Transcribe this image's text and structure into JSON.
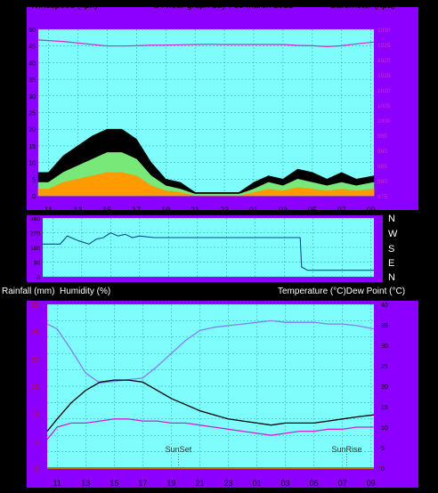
{
  "colors": {
    "background": "#000000",
    "panel": "#8c00ff",
    "plot": "#7ffdfd",
    "grid": "#2aa8a8",
    "baro": "#d02ad0",
    "gust": "#000000",
    "wind_mid": "#78e878",
    "wind_avg": "#ff9a00",
    "wind_dir": "#0b4f8a",
    "outdoor_temp": "#000000",
    "humidity": "#8080f0",
    "dew_point": "#d020d0",
    "rain_axis": "#cc0000",
    "rain_line": "#c07000"
  },
  "top_panel": {
    "left_title": "Windspeed (kph)",
    "center_title": "24 hour graph day : 30 March 2021",
    "right_title": "Barometer (hpa)"
  },
  "dir_panel": {
    "compass_labels": [
      "N",
      "W",
      "S",
      "E",
      "N"
    ]
  },
  "bottom_panel": {
    "left_title_1": "Rainfall (mm)",
    "left_title_2": "Humidity (%)",
    "right_title": "Temperature (°C)Dew Point (°C)",
    "sunset_label": "SunSet",
    "sunrise_label": "SunRise"
  },
  "chart_data": [
    {
      "type": "line",
      "title": "24 hour graph day : 30 March 2021",
      "x_labels": [
        "11",
        "13",
        "15",
        "17",
        "19",
        "21",
        "23",
        "01",
        "03",
        "05",
        "07",
        "09"
      ],
      "y_left_label": "Windspeed (kph)",
      "y_left_ticks": [
        0,
        5,
        10,
        15,
        20,
        25,
        30,
        35,
        40,
        45,
        50
      ],
      "ylim_left": [
        0,
        50
      ],
      "y_right_label": "Barometer (hpa)",
      "y_right_ticks": [
        975,
        980,
        985,
        990,
        995,
        1000,
        1005,
        1010,
        1015,
        1020,
        1025,
        1030
      ],
      "ylim_right": [
        975,
        1030
      ],
      "grid": true,
      "series": [
        {
          "name": "Barometer (hpa)",
          "axis": "right",
          "x": [
            10.3,
            12,
            13,
            14,
            15,
            16,
            17,
            18,
            19,
            20,
            21,
            22,
            23,
            24,
            25,
            26,
            27,
            28,
            29,
            30,
            31,
            32,
            33.2
          ],
          "values": [
            1026.5,
            1026,
            1025.5,
            1025,
            1024.5,
            1024.5,
            1024.6,
            1024.8,
            1024.8,
            1024.9,
            1025,
            1025.1,
            1025,
            1025,
            1025,
            1025,
            1025,
            1024.7,
            1024.6,
            1024.3,
            1024.6,
            1025.2,
            1025.8
          ]
        },
        {
          "name": "Gust",
          "axis": "left",
          "x": [
            10.3,
            11,
            12,
            13,
            14,
            15,
            16,
            17,
            18,
            19,
            20,
            21,
            22,
            23,
            24,
            25,
            26,
            27,
            28,
            29,
            30,
            31,
            32,
            33.2
          ],
          "values": [
            7,
            7,
            12,
            15,
            18,
            20,
            20,
            17,
            10,
            5,
            4,
            1,
            1,
            1,
            1,
            4,
            6,
            5,
            8,
            7,
            5,
            7,
            5,
            6
          ]
        },
        {
          "name": "Wind",
          "axis": "left",
          "x": [
            10.3,
            11,
            12,
            13,
            14,
            15,
            16,
            17,
            18,
            19,
            20,
            21,
            22,
            23,
            24,
            25,
            26,
            27,
            28,
            29,
            30,
            31,
            32,
            33.2
          ],
          "values": [
            4,
            4,
            7,
            9,
            11,
            13,
            13,
            11,
            6,
            3,
            2,
            0.5,
            0.5,
            0.5,
            0.5,
            2,
            4,
            3,
            5,
            4,
            3,
            4,
            3,
            4
          ]
        },
        {
          "name": "Average",
          "axis": "left",
          "x": [
            10.3,
            11,
            12,
            13,
            14,
            15,
            16,
            17,
            18,
            19,
            20,
            21,
            22,
            23,
            24,
            25,
            26,
            27,
            28,
            29,
            30,
            31,
            32,
            33.2
          ],
          "values": [
            2,
            2,
            4,
            5,
            6,
            7,
            7,
            6,
            3,
            1.5,
            1,
            0,
            0,
            0,
            0,
            1,
            2,
            1.5,
            2.5,
            2,
            1.5,
            2,
            1.5,
            2
          ]
        }
      ]
    },
    {
      "type": "line",
      "title": "",
      "x_labels": [],
      "y_left_ticks": [
        0,
        90,
        180,
        270,
        360
      ],
      "ylim_left": [
        0,
        360
      ],
      "grid": true,
      "series": [
        {
          "name": "Wind direction",
          "x": [
            10.3,
            11.5,
            12,
            12.8,
            13.5,
            14,
            14.5,
            15,
            15.5,
            16,
            16.5,
            17,
            18,
            19,
            20,
            22,
            24,
            26,
            28.1,
            28.2,
            28.6,
            33.2
          ],
          "values": [
            200,
            200,
            250,
            220,
            200,
            230,
            240,
            270,
            250,
            260,
            240,
            250,
            240,
            240,
            240,
            240,
            240,
            240,
            240,
            60,
            40,
            40
          ]
        }
      ]
    },
    {
      "type": "line",
      "title": "",
      "x_labels": [
        "11",
        "13",
        "15",
        "17",
        "19",
        "21",
        "23",
        "01",
        "03",
        "05",
        "07",
        "09"
      ],
      "y_left_label": "Humidity (%)",
      "y_left_ticks": [
        0,
        10,
        20,
        30,
        40,
        50,
        60,
        70,
        80,
        90,
        100
      ],
      "ylim_left": [
        0,
        100
      ],
      "y_rain_label": "Rainfall (mm)",
      "y_rain_ticks": [
        0,
        5,
        10,
        15,
        20,
        25,
        30
      ],
      "ylim_rain": [
        0,
        30
      ],
      "y_right_label": "Temperature (°C)Dew Point (°C)",
      "y_right_ticks": [
        0,
        5,
        10,
        15,
        20,
        25,
        30,
        35,
        40
      ],
      "ylim_right": [
        0,
        40
      ],
      "grid": true,
      "series": [
        {
          "name": "Humidity (%)",
          "axis": "left",
          "x": [
            10.3,
            11,
            12,
            13,
            14,
            15,
            16,
            17,
            18,
            19,
            20,
            21,
            22,
            23,
            24,
            25,
            26,
            27,
            28,
            29,
            30,
            31,
            32,
            33.2
          ],
          "values": [
            88,
            85,
            72,
            58,
            52,
            53,
            54,
            55,
            62,
            70,
            78,
            84,
            86,
            87,
            88,
            89,
            90,
            89,
            89,
            89,
            88,
            88,
            87,
            85
          ]
        },
        {
          "name": "Temperature (°C)",
          "axis": "right",
          "x": [
            10.3,
            11,
            12,
            13,
            14,
            15,
            16,
            17,
            18,
            19,
            20,
            21,
            22,
            23,
            24,
            25,
            26,
            27,
            28,
            29,
            30,
            31,
            32,
            33.2
          ],
          "values": [
            9,
            12,
            16,
            19,
            21,
            21.5,
            21.5,
            21,
            19,
            17,
            15.5,
            14,
            13,
            12,
            11.5,
            11,
            10.5,
            11,
            11,
            11,
            11.5,
            12,
            12.5,
            13
          ]
        },
        {
          "name": "Dew Point (°C)",
          "axis": "right",
          "x": [
            10.3,
            11,
            12,
            13,
            14,
            15,
            16,
            17,
            18,
            19,
            20,
            21,
            22,
            23,
            24,
            25,
            26,
            27,
            28,
            29,
            30,
            31,
            32,
            33.2
          ],
          "values": [
            7,
            10,
            11,
            11,
            11.5,
            12,
            12,
            11.5,
            11.5,
            11,
            11,
            10.5,
            10,
            9.5,
            9,
            8.5,
            8,
            8.5,
            9,
            9,
            9.5,
            9.5,
            10,
            10
          ]
        },
        {
          "name": "Rainfall (mm)",
          "axis": "rain",
          "x": [
            10.3,
            33.2
          ],
          "values": [
            0,
            0
          ]
        }
      ],
      "annotations": [
        {
          "label": "SunSet",
          "x": 19.5
        },
        {
          "label": "SunRise",
          "x": 31.3
        }
      ]
    }
  ]
}
